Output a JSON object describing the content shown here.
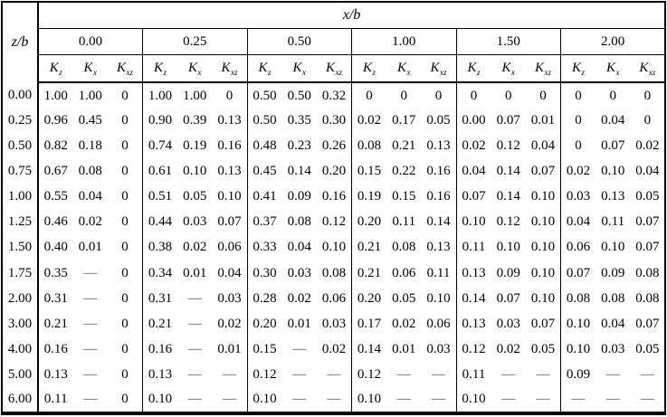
{
  "table": {
    "corner_label": "z/b",
    "span_label": "x/b",
    "groups": [
      "0.00",
      "0.25",
      "0.50",
      "1.00",
      "1.50",
      "2.00"
    ],
    "sub_headers": [
      {
        "base": "K",
        "sub": "z"
      },
      {
        "base": "K",
        "sub": "x"
      },
      {
        "base": "K",
        "sub": "xz"
      }
    ],
    "rows": [
      {
        "zb": "0.00",
        "values": [
          "1.00",
          "1.00",
          "0",
          "1.00",
          "1.00",
          "0",
          "0.50",
          "0.50",
          "0.32",
          "0",
          "0",
          "0",
          "0",
          "0",
          "0",
          "0",
          "0",
          "0"
        ]
      },
      {
        "zb": "0.25",
        "values": [
          "0.96",
          "0.45",
          "0",
          "0.90",
          "0.39",
          "0.13",
          "0.50",
          "0.35",
          "0.30",
          "0.02",
          "0.17",
          "0.05",
          "0.00",
          "0.07",
          "0.01",
          "0",
          "0.04",
          "0"
        ]
      },
      {
        "zb": "0.50",
        "values": [
          "0.82",
          "0.18",
          "0",
          "0.74",
          "0.19",
          "0.16",
          "0.48",
          "0.23",
          "0.26",
          "0.08",
          "0.21",
          "0.13",
          "0.02",
          "0.12",
          "0.04",
          "0",
          "0.07",
          "0.02"
        ]
      },
      {
        "zb": "0.75",
        "values": [
          "0.67",
          "0.08",
          "0",
          "0.61",
          "0.10",
          "0.13",
          "0.45",
          "0.14",
          "0.20",
          "0.15",
          "0.22",
          "0.16",
          "0.04",
          "0.14",
          "0.07",
          "0.02",
          "0.10",
          "0.04"
        ]
      },
      {
        "zb": "1.00",
        "values": [
          "0.55",
          "0.04",
          "0",
          "0.51",
          "0.05",
          "0.10",
          "0.41",
          "0.09",
          "0.16",
          "0.19",
          "0.15",
          "0.16",
          "0.07",
          "0.14",
          "0.10",
          "0.03",
          "0.13",
          "0.05"
        ]
      },
      {
        "zb": "1.25",
        "values": [
          "0.46",
          "0.02",
          "0",
          "0.44",
          "0.03",
          "0.07",
          "0.37",
          "0.08",
          "0.12",
          "0.20",
          "0.11",
          "0.14",
          "0.10",
          "0.12",
          "0.10",
          "0.04",
          "0.11",
          "0.07"
        ]
      },
      {
        "zb": "1.50",
        "values": [
          "0.40",
          "0.01",
          "0",
          "0.38",
          "0.02",
          "0.06",
          "0.33",
          "0.04",
          "0.10",
          "0.21",
          "0.08",
          "0.13",
          "0.11",
          "0.10",
          "0.10",
          "0.06",
          "0.10",
          "0.07"
        ]
      },
      {
        "zb": "1.75",
        "values": [
          "0.35",
          "—",
          "0",
          "0.34",
          "0.01",
          "0.04",
          "0.30",
          "0.03",
          "0.08",
          "0.21",
          "0.06",
          "0.11",
          "0.13",
          "0.09",
          "0.10",
          "0.07",
          "0.09",
          "0.08"
        ]
      },
      {
        "zb": "2.00",
        "values": [
          "0.31",
          "—",
          "0",
          "0.31",
          "—",
          "0.03",
          "0.28",
          "0.02",
          "0.06",
          "0.20",
          "0.05",
          "0.10",
          "0.14",
          "0.07",
          "0.10",
          "0.08",
          "0.08",
          "0.08"
        ]
      },
      {
        "zb": "3.00",
        "values": [
          "0.21",
          "—",
          "0",
          "0.21",
          "—",
          "0.02",
          "0.20",
          "0.01",
          "0.03",
          "0.17",
          "0.02",
          "0.06",
          "0.13",
          "0.03",
          "0.07",
          "0.10",
          "0.04",
          "0.07"
        ]
      },
      {
        "zb": "4.00",
        "values": [
          "0.16",
          "—",
          "0",
          "0.16",
          "—",
          "0.01",
          "0.15",
          "—",
          "0.02",
          "0.14",
          "0.01",
          "0.03",
          "0.12",
          "0.02",
          "0.05",
          "0.10",
          "0.03",
          "0.05"
        ]
      },
      {
        "zb": "5.00",
        "values": [
          "0.13",
          "—",
          "0",
          "0.13",
          "—",
          "—",
          "0.12",
          "—",
          "—",
          "0.12",
          "—",
          "—",
          "0.11",
          "—",
          "—",
          "0.09",
          "—",
          "—"
        ]
      },
      {
        "zb": "6.00",
        "values": [
          "0.11",
          "—",
          "0",
          "0.10",
          "—",
          "—",
          "0.10",
          "—",
          "—",
          "0.10",
          "—",
          "—",
          "0.10",
          "—",
          "—",
          "—",
          "—",
          "—"
        ]
      }
    ]
  }
}
